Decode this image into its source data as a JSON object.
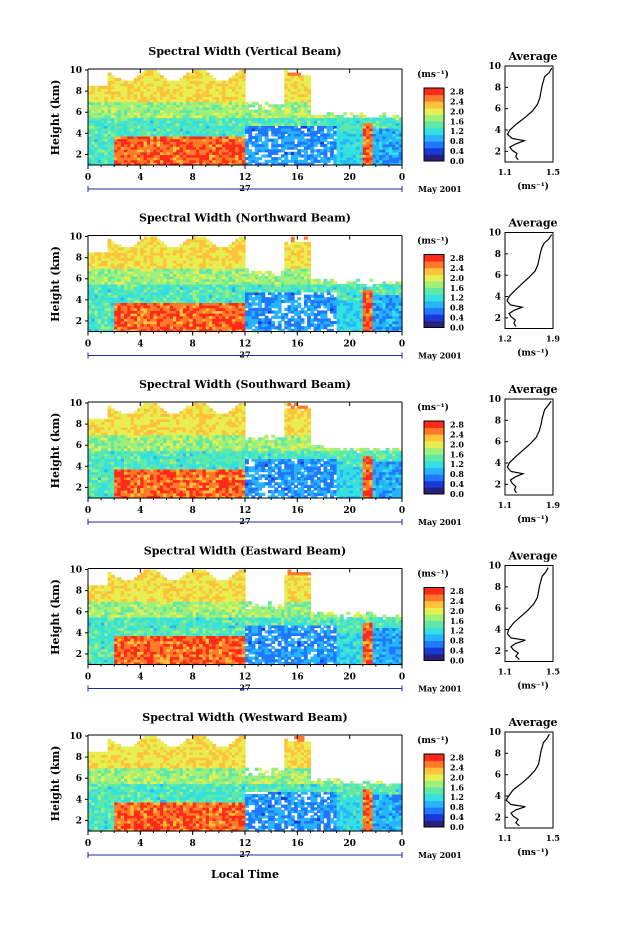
{
  "figure": {
    "xlabel": "Local Time",
    "day_label": "27",
    "month_label": "May 2001",
    "unit_label": "(ms⁻¹)",
    "avg_title": "Average",
    "avg_xlabel": "(ms⁻¹)",
    "ylabel": "Height (km)"
  },
  "chart_data": [
    {
      "type": "heatmap",
      "title": "Spectral Width (Vertical Beam)",
      "x_ticks": [
        "0",
        "4",
        "8",
        "12",
        "16",
        "20",
        "0"
      ],
      "y_ticks": [
        "2",
        "4",
        "6",
        "8",
        "10"
      ],
      "xlim": [
        0,
        24
      ],
      "ylim": [
        1,
        10
      ],
      "colorbar_ticks": [
        "0.0",
        "0.4",
        "0.8",
        "1.2",
        "1.6",
        "2.0",
        "2.4",
        "2.8"
      ],
      "colorbar_range": [
        0,
        2.8
      ],
      "average": {
        "xlim": [
          1.1,
          1.5
        ],
        "x_ticks": [
          "1.1",
          "1.5"
        ],
        "y_ticks": [
          "2",
          "4",
          "6",
          "8",
          "10"
        ],
        "profile": [
          [
            1.49,
            9.8
          ],
          [
            1.47,
            9.4
          ],
          [
            1.43,
            9.0
          ],
          [
            1.42,
            8.6
          ],
          [
            1.41,
            8.2
          ],
          [
            1.4,
            7.6
          ],
          [
            1.39,
            7.0
          ],
          [
            1.37,
            6.4
          ],
          [
            1.33,
            5.8
          ],
          [
            1.27,
            5.2
          ],
          [
            1.2,
            4.6
          ],
          [
            1.14,
            4.0
          ],
          [
            1.12,
            3.6
          ],
          [
            1.16,
            3.2
          ],
          [
            1.26,
            3.0
          ],
          [
            1.19,
            2.7
          ],
          [
            1.14,
            2.4
          ],
          [
            1.16,
            2.1
          ],
          [
            1.2,
            1.8
          ],
          [
            1.19,
            1.5
          ],
          [
            1.21,
            1.2
          ]
        ]
      }
    },
    {
      "type": "heatmap",
      "title": "Spectral Width (Northward Beam)",
      "x_ticks": [
        "0",
        "4",
        "8",
        "12",
        "16",
        "20",
        "0"
      ],
      "y_ticks": [
        "2",
        "4",
        "6",
        "8",
        "10"
      ],
      "xlim": [
        0,
        24
      ],
      "ylim": [
        1,
        10
      ],
      "colorbar_ticks": [
        "0.0",
        "0.4",
        "0.8",
        "1.2",
        "1.6",
        "2.0",
        "2.4",
        "2.8"
      ],
      "colorbar_range": [
        0,
        2.8
      ],
      "average": {
        "xlim": [
          1.2,
          1.9
        ],
        "x_ticks": [
          "1.2",
          "1.9"
        ],
        "y_ticks": [
          "2",
          "4",
          "6",
          "8",
          "10"
        ],
        "profile": [
          [
            1.88,
            9.8
          ],
          [
            1.84,
            9.4
          ],
          [
            1.77,
            9.0
          ],
          [
            1.74,
            8.6
          ],
          [
            1.72,
            8.2
          ],
          [
            1.7,
            7.6
          ],
          [
            1.68,
            7.0
          ],
          [
            1.64,
            6.4
          ],
          [
            1.55,
            5.8
          ],
          [
            1.45,
            5.2
          ],
          [
            1.35,
            4.6
          ],
          [
            1.26,
            4.0
          ],
          [
            1.23,
            3.6
          ],
          [
            1.28,
            3.2
          ],
          [
            1.45,
            3.0
          ],
          [
            1.33,
            2.7
          ],
          [
            1.26,
            2.4
          ],
          [
            1.29,
            2.1
          ],
          [
            1.35,
            1.8
          ],
          [
            1.33,
            1.5
          ],
          [
            1.36,
            1.2
          ]
        ]
      }
    },
    {
      "type": "heatmap",
      "title": "Spectral Width (Southward Beam)",
      "x_ticks": [
        "0",
        "4",
        "8",
        "12",
        "16",
        "20",
        "0"
      ],
      "y_ticks": [
        "2",
        "4",
        "6",
        "8",
        "10"
      ],
      "xlim": [
        0,
        24
      ],
      "ylim": [
        1,
        10
      ],
      "colorbar_ticks": [
        "0.0",
        "0.4",
        "0.8",
        "1.2",
        "1.6",
        "2.0",
        "2.4",
        "2.8"
      ],
      "colorbar_range": [
        0,
        2.8
      ],
      "average": {
        "xlim": [
          1.1,
          1.9
        ],
        "x_ticks": [
          "1.1",
          "1.9"
        ],
        "y_ticks": [
          "2",
          "4",
          "6",
          "8",
          "10"
        ],
        "profile": [
          [
            1.87,
            9.8
          ],
          [
            1.82,
            9.4
          ],
          [
            1.76,
            9.0
          ],
          [
            1.74,
            8.6
          ],
          [
            1.72,
            8.2
          ],
          [
            1.7,
            7.6
          ],
          [
            1.67,
            7.0
          ],
          [
            1.62,
            6.4
          ],
          [
            1.52,
            5.8
          ],
          [
            1.4,
            5.2
          ],
          [
            1.28,
            4.6
          ],
          [
            1.17,
            4.0
          ],
          [
            1.14,
            3.6
          ],
          [
            1.2,
            3.2
          ],
          [
            1.4,
            3.0
          ],
          [
            1.27,
            2.7
          ],
          [
            1.19,
            2.4
          ],
          [
            1.22,
            2.1
          ],
          [
            1.28,
            1.8
          ],
          [
            1.26,
            1.5
          ],
          [
            1.29,
            1.2
          ]
        ]
      }
    },
    {
      "type": "heatmap",
      "title": "Spectral Width (Eastward Beam)",
      "x_ticks": [
        "0",
        "4",
        "8",
        "12",
        "16",
        "20",
        "0"
      ],
      "y_ticks": [
        "2",
        "4",
        "6",
        "8",
        "10"
      ],
      "xlim": [
        0,
        24
      ],
      "ylim": [
        1,
        10
      ],
      "colorbar_ticks": [
        "0.0",
        "0.4",
        "0.8",
        "1.2",
        "1.6",
        "2.0",
        "2.4",
        "2.8"
      ],
      "colorbar_range": [
        0,
        2.8
      ],
      "average": {
        "xlim": [
          1.1,
          1.5
        ],
        "x_ticks": [
          "1.1",
          "1.5"
        ],
        "y_ticks": [
          "2",
          "4",
          "6",
          "8",
          "10"
        ],
        "profile": [
          [
            1.46,
            9.8
          ],
          [
            1.44,
            9.4
          ],
          [
            1.41,
            9.0
          ],
          [
            1.4,
            8.6
          ],
          [
            1.39,
            8.2
          ],
          [
            1.38,
            7.6
          ],
          [
            1.37,
            7.0
          ],
          [
            1.34,
            6.4
          ],
          [
            1.29,
            5.8
          ],
          [
            1.23,
            5.2
          ],
          [
            1.17,
            4.6
          ],
          [
            1.13,
            4.0
          ],
          [
            1.12,
            3.6
          ],
          [
            1.15,
            3.2
          ],
          [
            1.27,
            3.0
          ],
          [
            1.19,
            2.7
          ],
          [
            1.15,
            2.4
          ],
          [
            1.17,
            2.1
          ],
          [
            1.21,
            1.8
          ],
          [
            1.19,
            1.5
          ],
          [
            1.22,
            1.2
          ]
        ]
      }
    },
    {
      "type": "heatmap",
      "title": "Spectral Width (Westward Beam)",
      "x_ticks": [
        "0",
        "4",
        "8",
        "12",
        "16",
        "20",
        "0"
      ],
      "y_ticks": [
        "2",
        "4",
        "6",
        "8",
        "10"
      ],
      "xlim": [
        0,
        24
      ],
      "ylim": [
        1,
        10
      ],
      "colorbar_ticks": [
        "0.0",
        "0.4",
        "0.8",
        "1.2",
        "1.6",
        "2.0",
        "2.4",
        "2.8"
      ],
      "colorbar_range": [
        0,
        2.8
      ],
      "average": {
        "xlim": [
          1.1,
          1.5
        ],
        "x_ticks": [
          "1.1",
          "1.5"
        ],
        "y_ticks": [
          "2",
          "4",
          "6",
          "8",
          "10"
        ],
        "profile": [
          [
            1.47,
            9.8
          ],
          [
            1.45,
            9.4
          ],
          [
            1.42,
            9.0
          ],
          [
            1.41,
            8.6
          ],
          [
            1.4,
            8.2
          ],
          [
            1.39,
            7.6
          ],
          [
            1.38,
            7.0
          ],
          [
            1.35,
            6.4
          ],
          [
            1.3,
            5.8
          ],
          [
            1.24,
            5.2
          ],
          [
            1.17,
            4.6
          ],
          [
            1.13,
            4.0
          ],
          [
            1.11,
            3.6
          ],
          [
            1.15,
            3.2
          ],
          [
            1.27,
            3.0
          ],
          [
            1.19,
            2.7
          ],
          [
            1.15,
            2.4
          ],
          [
            1.17,
            2.1
          ],
          [
            1.21,
            1.8
          ],
          [
            1.19,
            1.5
          ],
          [
            1.22,
            1.2
          ]
        ]
      }
    }
  ]
}
